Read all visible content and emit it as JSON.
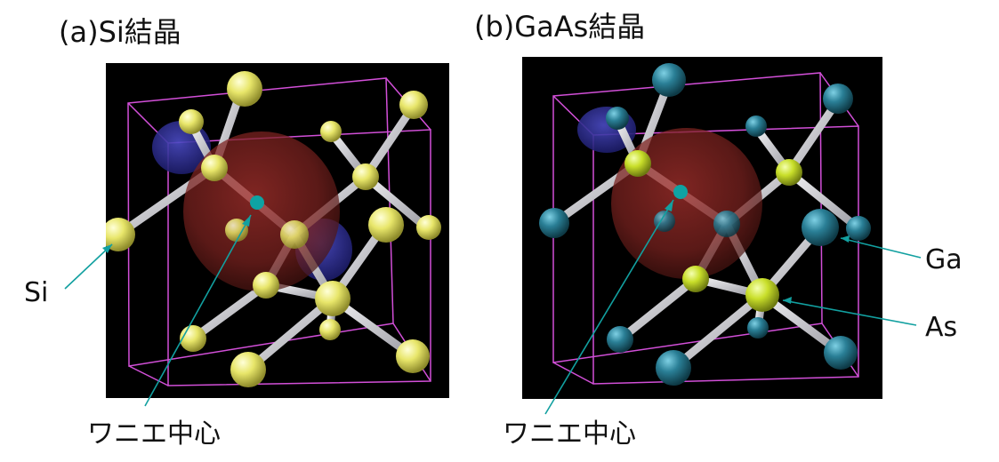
{
  "figure": {
    "panel_a_title": "(a)Si結晶",
    "panel_b_title": "(b)GaAs結晶",
    "labels": {
      "si": "Si",
      "wannier_center_a": "ワニエ中心",
      "wannier_center_b": "ワニエ中心",
      "ga": "Ga",
      "as": "As"
    }
  },
  "colors": {
    "background": "#000000",
    "cell_edge": "#d24fd8",
    "si_atom": "#e8e66a",
    "ga_atom": "#2a7f96",
    "as_atom": "#c9df2a",
    "bond": "#d8d8dc",
    "wannier_center": "#0fa3a3",
    "orbital_red": "#8c2a26",
    "orbital_blue": "#2a2a8c",
    "annotation_line": "#12a0a0"
  }
}
